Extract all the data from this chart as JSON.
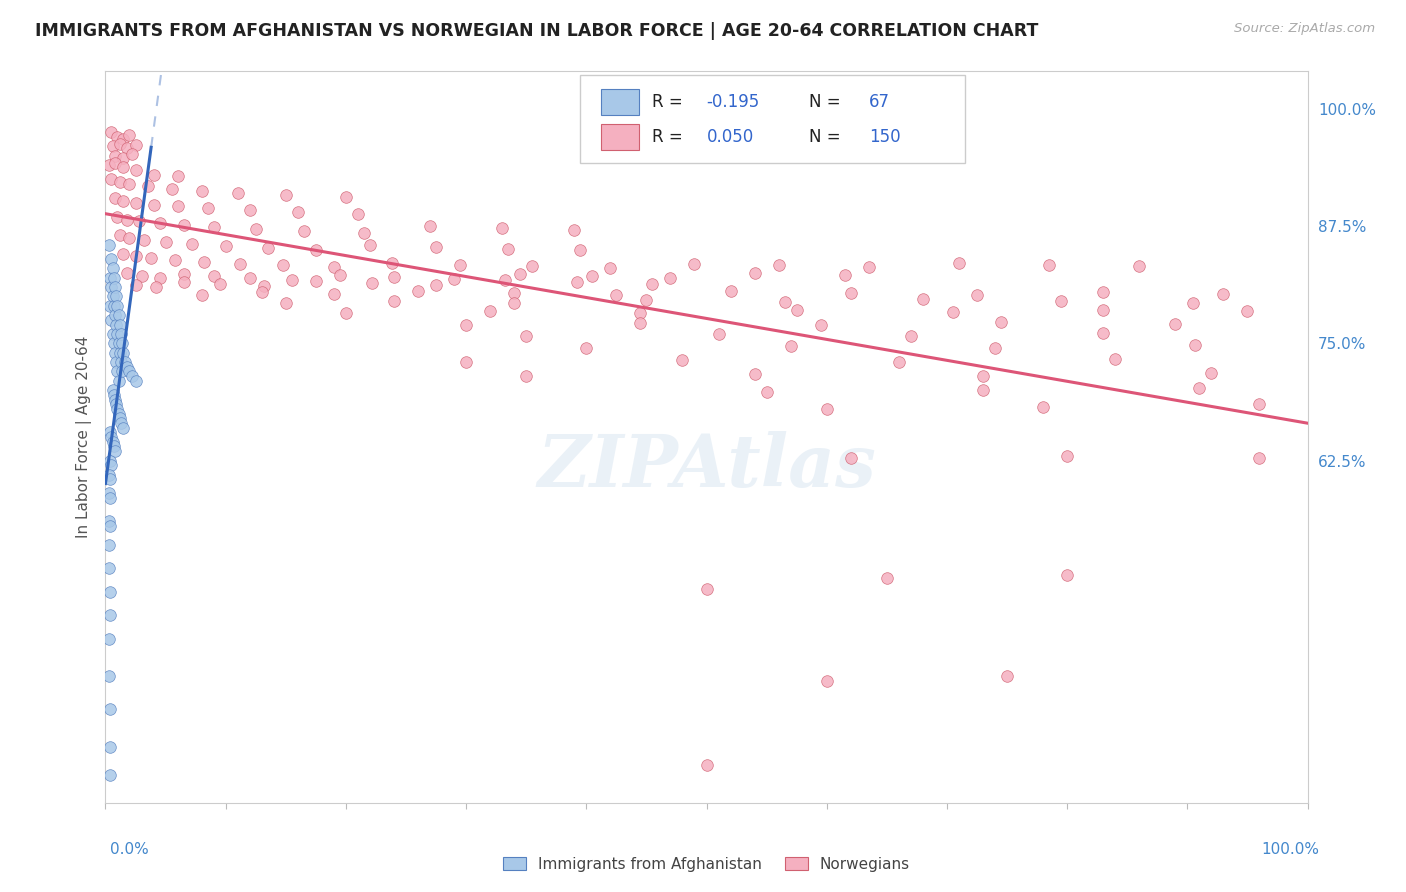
{
  "title": "IMMIGRANTS FROM AFGHANISTAN VS NORWEGIAN IN LABOR FORCE | AGE 20-64 CORRELATION CHART",
  "source": "Source: ZipAtlas.com",
  "legend_label1": "Immigrants from Afghanistan",
  "legend_label2": "Norwegians",
  "watermark": "ZIPAtlas",
  "afghan_fill": "#a8c8e8",
  "afghan_edge": "#5580c0",
  "norwegian_fill": "#f5b0c0",
  "norwegian_edge": "#d06070",
  "afghan_trend_color": "#3366bb",
  "norwegian_trend_color": "#dd5577",
  "right_tick_color": "#4488cc",
  "title_color": "#222222",
  "source_color": "#aaaaaa",
  "ylabel_color": "#555555",
  "grid_color": "#e0e0e0",
  "legend_label_color": "#222222",
  "legend_val_color": "#3366cc",
  "right_yticks": [
    0.625,
    0.75,
    0.875,
    1.0
  ],
  "right_yticklabels": [
    "62.5%",
    "75.0%",
    "87.5%",
    "100.0%"
  ],
  "xmin": 0.0,
  "xmax": 1.0,
  "ymin": 0.26,
  "ymax": 1.04,
  "afghan_scatter": [
    [
      0.003,
      0.855
    ],
    [
      0.004,
      0.82
    ],
    [
      0.004,
      0.79
    ],
    [
      0.005,
      0.84
    ],
    [
      0.005,
      0.81
    ],
    [
      0.005,
      0.775
    ],
    [
      0.006,
      0.83
    ],
    [
      0.006,
      0.8
    ],
    [
      0.006,
      0.76
    ],
    [
      0.007,
      0.82
    ],
    [
      0.007,
      0.79
    ],
    [
      0.007,
      0.75
    ],
    [
      0.008,
      0.81
    ],
    [
      0.008,
      0.78
    ],
    [
      0.008,
      0.74
    ],
    [
      0.009,
      0.8
    ],
    [
      0.009,
      0.77
    ],
    [
      0.009,
      0.73
    ],
    [
      0.01,
      0.79
    ],
    [
      0.01,
      0.76
    ],
    [
      0.01,
      0.72
    ],
    [
      0.011,
      0.78
    ],
    [
      0.011,
      0.75
    ],
    [
      0.011,
      0.71
    ],
    [
      0.012,
      0.77
    ],
    [
      0.012,
      0.74
    ],
    [
      0.013,
      0.76
    ],
    [
      0.013,
      0.73
    ],
    [
      0.014,
      0.75
    ],
    [
      0.014,
      0.72
    ],
    [
      0.015,
      0.74
    ],
    [
      0.016,
      0.73
    ],
    [
      0.018,
      0.725
    ],
    [
      0.02,
      0.72
    ],
    [
      0.022,
      0.715
    ],
    [
      0.025,
      0.71
    ],
    [
      0.006,
      0.7
    ],
    [
      0.007,
      0.695
    ],
    [
      0.008,
      0.69
    ],
    [
      0.009,
      0.685
    ],
    [
      0.01,
      0.68
    ],
    [
      0.011,
      0.675
    ],
    [
      0.012,
      0.67
    ],
    [
      0.013,
      0.665
    ],
    [
      0.015,
      0.66
    ],
    [
      0.004,
      0.655
    ],
    [
      0.005,
      0.65
    ],
    [
      0.006,
      0.645
    ],
    [
      0.007,
      0.64
    ],
    [
      0.008,
      0.635
    ],
    [
      0.004,
      0.625
    ],
    [
      0.005,
      0.62
    ],
    [
      0.003,
      0.61
    ],
    [
      0.004,
      0.605
    ],
    [
      0.003,
      0.59
    ],
    [
      0.004,
      0.585
    ],
    [
      0.003,
      0.56
    ],
    [
      0.004,
      0.555
    ],
    [
      0.003,
      0.535
    ],
    [
      0.003,
      0.51
    ],
    [
      0.004,
      0.485
    ],
    [
      0.004,
      0.46
    ],
    [
      0.003,
      0.435
    ],
    [
      0.003,
      0.395
    ],
    [
      0.004,
      0.36
    ],
    [
      0.004,
      0.32
    ],
    [
      0.004,
      0.29
    ]
  ],
  "norwegian_scatter": [
    [
      0.005,
      0.975
    ],
    [
      0.01,
      0.97
    ],
    [
      0.015,
      0.968
    ],
    [
      0.02,
      0.972
    ],
    [
      0.006,
      0.96
    ],
    [
      0.012,
      0.963
    ],
    [
      0.018,
      0.958
    ],
    [
      0.025,
      0.961
    ],
    [
      0.008,
      0.95
    ],
    [
      0.015,
      0.948
    ],
    [
      0.022,
      0.952
    ],
    [
      0.003,
      0.94
    ],
    [
      0.008,
      0.942
    ],
    [
      0.015,
      0.938
    ],
    [
      0.025,
      0.935
    ],
    [
      0.04,
      0.93
    ],
    [
      0.06,
      0.928
    ],
    [
      0.005,
      0.925
    ],
    [
      0.012,
      0.922
    ],
    [
      0.02,
      0.92
    ],
    [
      0.035,
      0.918
    ],
    [
      0.055,
      0.915
    ],
    [
      0.08,
      0.912
    ],
    [
      0.11,
      0.91
    ],
    [
      0.15,
      0.908
    ],
    [
      0.2,
      0.906
    ],
    [
      0.008,
      0.905
    ],
    [
      0.015,
      0.902
    ],
    [
      0.025,
      0.9
    ],
    [
      0.04,
      0.898
    ],
    [
      0.06,
      0.896
    ],
    [
      0.085,
      0.894
    ],
    [
      0.12,
      0.892
    ],
    [
      0.16,
      0.89
    ],
    [
      0.21,
      0.888
    ],
    [
      0.01,
      0.885
    ],
    [
      0.018,
      0.882
    ],
    [
      0.028,
      0.88
    ],
    [
      0.045,
      0.878
    ],
    [
      0.065,
      0.876
    ],
    [
      0.09,
      0.874
    ],
    [
      0.125,
      0.872
    ],
    [
      0.165,
      0.87
    ],
    [
      0.215,
      0.868
    ],
    [
      0.27,
      0.875
    ],
    [
      0.33,
      0.873
    ],
    [
      0.39,
      0.871
    ],
    [
      0.012,
      0.865
    ],
    [
      0.02,
      0.862
    ],
    [
      0.032,
      0.86
    ],
    [
      0.05,
      0.858
    ],
    [
      0.072,
      0.856
    ],
    [
      0.1,
      0.854
    ],
    [
      0.135,
      0.852
    ],
    [
      0.175,
      0.85
    ],
    [
      0.22,
      0.855
    ],
    [
      0.275,
      0.853
    ],
    [
      0.335,
      0.851
    ],
    [
      0.395,
      0.849
    ],
    [
      0.015,
      0.845
    ],
    [
      0.025,
      0.843
    ],
    [
      0.038,
      0.841
    ],
    [
      0.058,
      0.839
    ],
    [
      0.082,
      0.837
    ],
    [
      0.112,
      0.835
    ],
    [
      0.148,
      0.833
    ],
    [
      0.19,
      0.831
    ],
    [
      0.238,
      0.836
    ],
    [
      0.295,
      0.834
    ],
    [
      0.355,
      0.832
    ],
    [
      0.42,
      0.83
    ],
    [
      0.49,
      0.835
    ],
    [
      0.56,
      0.833
    ],
    [
      0.635,
      0.831
    ],
    [
      0.71,
      0.836
    ],
    [
      0.785,
      0.834
    ],
    [
      0.86,
      0.832
    ],
    [
      0.018,
      0.825
    ],
    [
      0.03,
      0.822
    ],
    [
      0.045,
      0.82
    ],
    [
      0.065,
      0.824
    ],
    [
      0.09,
      0.822
    ],
    [
      0.12,
      0.82
    ],
    [
      0.155,
      0.818
    ],
    [
      0.195,
      0.823
    ],
    [
      0.24,
      0.821
    ],
    [
      0.29,
      0.819
    ],
    [
      0.345,
      0.824
    ],
    [
      0.405,
      0.822
    ],
    [
      0.47,
      0.82
    ],
    [
      0.54,
      0.825
    ],
    [
      0.615,
      0.823
    ],
    [
      0.025,
      0.812
    ],
    [
      0.042,
      0.81
    ],
    [
      0.065,
      0.815
    ],
    [
      0.095,
      0.813
    ],
    [
      0.132,
      0.811
    ],
    [
      0.175,
      0.816
    ],
    [
      0.222,
      0.814
    ],
    [
      0.275,
      0.812
    ],
    [
      0.332,
      0.817
    ],
    [
      0.392,
      0.815
    ],
    [
      0.455,
      0.813
    ],
    [
      0.08,
      0.802
    ],
    [
      0.13,
      0.805
    ],
    [
      0.19,
      0.803
    ],
    [
      0.26,
      0.806
    ],
    [
      0.34,
      0.804
    ],
    [
      0.425,
      0.802
    ],
    [
      0.52,
      0.806
    ],
    [
      0.62,
      0.804
    ],
    [
      0.725,
      0.802
    ],
    [
      0.83,
      0.805
    ],
    [
      0.93,
      0.803
    ],
    [
      0.15,
      0.793
    ],
    [
      0.24,
      0.795
    ],
    [
      0.34,
      0.793
    ],
    [
      0.45,
      0.796
    ],
    [
      0.565,
      0.794
    ],
    [
      0.68,
      0.797
    ],
    [
      0.795,
      0.795
    ],
    [
      0.905,
      0.793
    ],
    [
      0.2,
      0.782
    ],
    [
      0.32,
      0.784
    ],
    [
      0.445,
      0.782
    ],
    [
      0.575,
      0.785
    ],
    [
      0.705,
      0.783
    ],
    [
      0.83,
      0.786
    ],
    [
      0.95,
      0.784
    ],
    [
      0.3,
      0.77
    ],
    [
      0.445,
      0.772
    ],
    [
      0.595,
      0.77
    ],
    [
      0.745,
      0.773
    ],
    [
      0.89,
      0.771
    ],
    [
      0.35,
      0.758
    ],
    [
      0.51,
      0.76
    ],
    [
      0.67,
      0.758
    ],
    [
      0.83,
      0.761
    ],
    [
      0.4,
      0.745
    ],
    [
      0.57,
      0.747
    ],
    [
      0.74,
      0.745
    ],
    [
      0.906,
      0.748
    ],
    [
      0.3,
      0.73
    ],
    [
      0.48,
      0.732
    ],
    [
      0.66,
      0.73
    ],
    [
      0.84,
      0.733
    ],
    [
      0.35,
      0.715
    ],
    [
      0.54,
      0.717
    ],
    [
      0.73,
      0.715
    ],
    [
      0.92,
      0.718
    ],
    [
      0.55,
      0.698
    ],
    [
      0.73,
      0.7
    ],
    [
      0.91,
      0.702
    ],
    [
      0.6,
      0.68
    ],
    [
      0.78,
      0.682
    ],
    [
      0.96,
      0.685
    ],
    [
      0.62,
      0.628
    ],
    [
      0.8,
      0.63
    ],
    [
      0.96,
      0.628
    ],
    [
      0.5,
      0.488
    ],
    [
      0.65,
      0.5
    ],
    [
      0.8,
      0.503
    ],
    [
      0.6,
      0.39
    ],
    [
      0.75,
      0.395
    ],
    [
      0.5,
      0.3
    ]
  ]
}
